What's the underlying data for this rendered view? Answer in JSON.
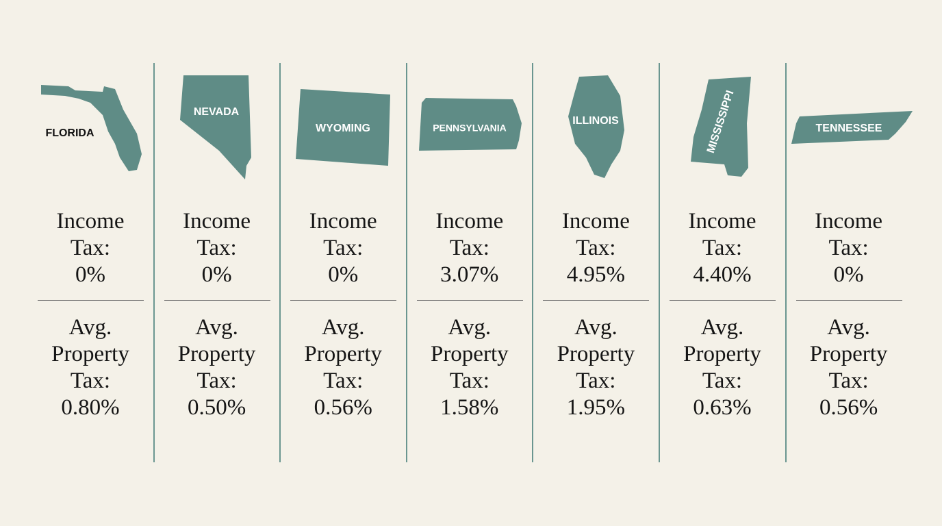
{
  "states": [
    {
      "name": "FLORIDA",
      "income_label": "Income Tax:",
      "income": "0%",
      "property_label": "Avg. Property Tax:",
      "property": "0.80%"
    },
    {
      "name": "NEVADA",
      "income_label": "Income Tax:",
      "income": "0%",
      "property_label": "Avg. Property Tax:",
      "property": "0.50%"
    },
    {
      "name": "WYOMING",
      "income_label": "Income Tax:",
      "income": "0%",
      "property_label": "Avg. Property Tax:",
      "property": "0.56%"
    },
    {
      "name": "PENNSYLVANIA",
      "income_label": "Income Tax:",
      "income": "3.07%",
      "property_label": "Avg. Property Tax:",
      "property": "1.58%"
    },
    {
      "name": "ILLINOIS",
      "income_label": "Income Tax:",
      "income": "4.95%",
      "property_label": "Avg. Property Tax:",
      "property": "1.95%"
    },
    {
      "name": "MISSISSIPPI",
      "income_label": "Income Tax:",
      "income": "4.40%",
      "property_label": "Avg. Property Tax:",
      "property": "0.63%"
    },
    {
      "name": "TENNESSEE",
      "income_label": "Income Tax:",
      "income": "0%",
      "property_label": "Avg. Property Tax:",
      "property": "0.56%"
    }
  ]
}
